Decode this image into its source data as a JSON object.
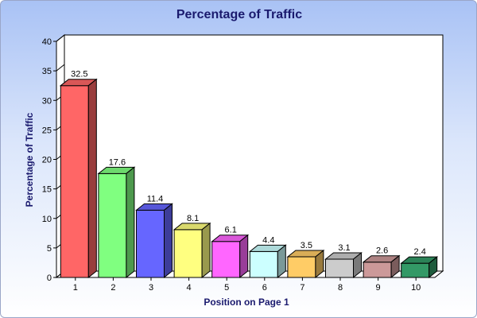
{
  "chart_data": {
    "type": "bar",
    "title": "Percentage of Traffic",
    "xlabel": "Position on Page 1",
    "ylabel": "Percentage of Traffic",
    "categories": [
      "1",
      "2",
      "3",
      "4",
      "5",
      "6",
      "7",
      "8",
      "9",
      "10"
    ],
    "values": [
      32.5,
      17.6,
      11.4,
      8.1,
      6.1,
      4.4,
      3.5,
      3.1,
      2.6,
      2.4
    ],
    "value_labels": [
      "32.5",
      "17.6",
      "11.4",
      "8.1",
      "6.1",
      "4.4",
      "3.5",
      "3.1",
      "2.6",
      "2.4"
    ],
    "ylim": [
      0,
      40
    ],
    "yticks": [
      "0",
      "5",
      "10",
      "15",
      "20",
      "25",
      "30",
      "35",
      "40"
    ],
    "bar_colors": [
      "#ff6666",
      "#80ff80",
      "#6666ff",
      "#ffff80",
      "#ff66ff",
      "#ccffff",
      "#ffcc66",
      "#cccccc",
      "#cc9999",
      "#339966"
    ],
    "grid": false,
    "legend": "none",
    "style": "3d"
  }
}
